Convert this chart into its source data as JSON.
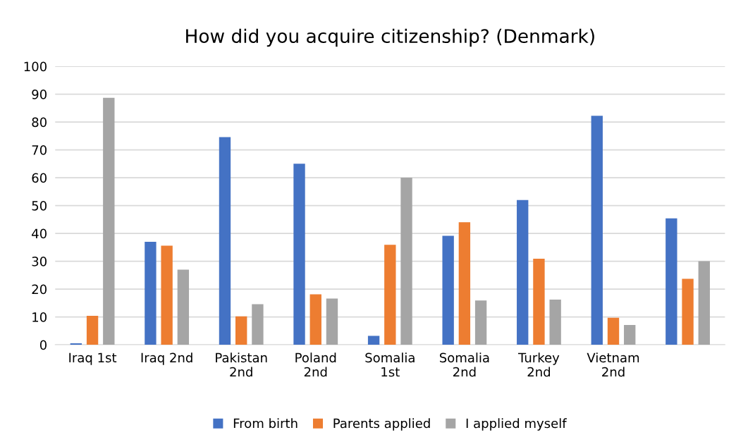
{
  "chart_data": {
    "type": "bar",
    "title": "How did you acquire citizenship? (Denmark)",
    "categories": [
      "Iraq 1st",
      "Iraq 2nd",
      "Pakistan 2nd",
      "Poland 2nd",
      "Somalia 1st",
      "Somalia 2nd",
      "Turkey 2nd",
      "Vietnam 2nd",
      null
    ],
    "series": [
      {
        "name": "From birth",
        "color": "#4472c4",
        "values": [
          0.5,
          37.0,
          74.6,
          65.0,
          3.2,
          39.1,
          52.0,
          82.2,
          45.4
        ]
      },
      {
        "name": "Parents applied",
        "color": "#ed7d31",
        "values": [
          10.4,
          35.6,
          10.2,
          18.1,
          35.9,
          44.0,
          30.9,
          9.7,
          23.7
        ]
      },
      {
        "name": "I applied myself",
        "color": "#a5a5a5",
        "values": [
          88.7,
          27.0,
          14.6,
          16.6,
          60.0,
          15.9,
          16.2,
          7.1,
          30.0
        ]
      }
    ],
    "ylim": [
      0,
      100
    ],
    "yticks": [
      0,
      10,
      20,
      30,
      40,
      50,
      60,
      70,
      80,
      90,
      100
    ],
    "grid": "y",
    "legend": "bottom"
  }
}
